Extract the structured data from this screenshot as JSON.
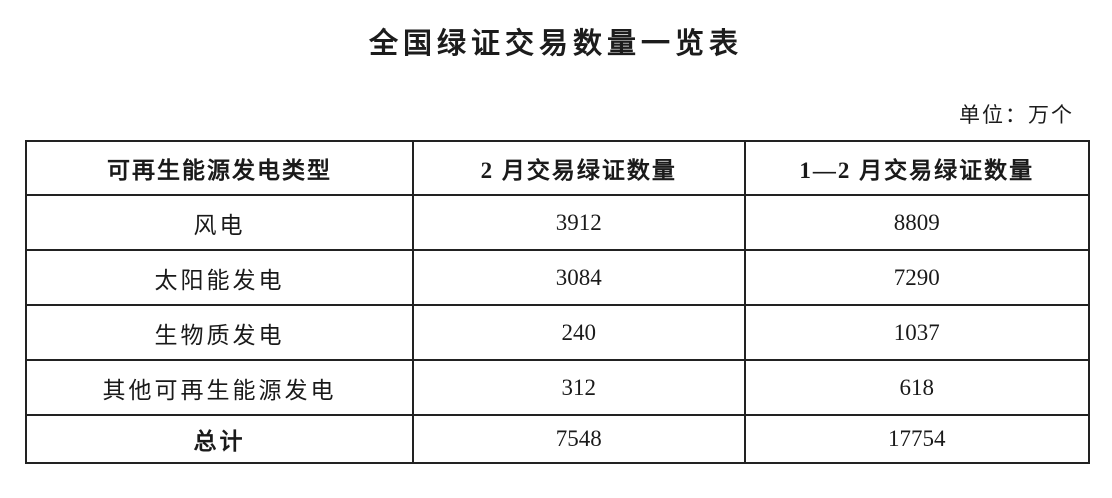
{
  "page": {
    "title": "全国绿证交易数量一览表",
    "unit_label": "单位：万个"
  },
  "table": {
    "headers": [
      "可再生能源发电类型",
      "2 月交易绿证数量",
      "1—2 月交易绿证数量"
    ],
    "rows": [
      [
        "风电",
        "3912",
        "8809"
      ],
      [
        "太阳能发电",
        "3084",
        "7290"
      ],
      [
        "生物质发电",
        "240",
        "1037"
      ],
      [
        "其他可再生能源发电",
        "312",
        "618"
      ]
    ],
    "total_row": [
      "总计",
      "7548",
      "17754"
    ]
  }
}
